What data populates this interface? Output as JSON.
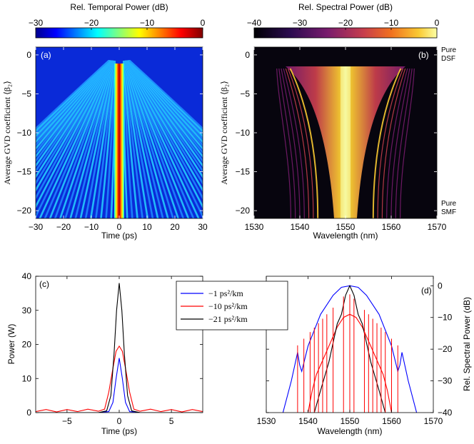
{
  "colorbar_a": {
    "title": "Rel. Temporal Power (dB)",
    "ticks": [
      "−30",
      "−20",
      "−10",
      "0"
    ]
  },
  "colorbar_b": {
    "title": "Rel. Spectral Power (dB)",
    "ticks": [
      "−40",
      "−30",
      "−20",
      "−10",
      "0"
    ]
  },
  "chart_data": [
    {
      "panel": "(a)",
      "type": "heatmap",
      "colormap": "jet",
      "xlabel": "Time (ps)",
      "ylabel": "Average GVD coefficient ⟨β₂⟩",
      "xlim": [
        -30,
        30
      ],
      "ylim": [
        -21,
        1
      ],
      "xticks": [
        -30,
        -20,
        -10,
        0,
        10,
        20,
        30
      ],
      "yticks": [
        0,
        -5,
        -10,
        -15,
        -20
      ],
      "zlim": [
        -30,
        0
      ],
      "zunit": "dB"
    },
    {
      "panel": "(b)",
      "type": "heatmap",
      "colormap": "inferno",
      "xlabel": "Wavelength (nm)",
      "ylabel": "Average GVD coefficient ⟨β₂⟩",
      "xlim": [
        1530,
        1570
      ],
      "ylim": [
        -21,
        1
      ],
      "xticks": [
        1530,
        1540,
        1550,
        1560,
        1570
      ],
      "yticks": [
        0,
        -5,
        -10,
        -15,
        -20
      ],
      "zlim": [
        -40,
        0
      ],
      "zunit": "dB",
      "annotations": [
        {
          "text": "Pure DSF",
          "lines": [
            "Pure",
            "DSF"
          ],
          "at_y": 0
        },
        {
          "text": "Pure SMF",
          "lines": [
            "Pure",
            "SMF"
          ],
          "at_y": -21
        }
      ]
    },
    {
      "panel": "(c)",
      "type": "line",
      "xlabel": "Time (ps)",
      "ylabel": "Power (W)",
      "xlim": [
        -8,
        8
      ],
      "ylim": [
        0,
        40
      ],
      "xticks": [
        -5,
        0,
        5
      ],
      "yticks": [
        0,
        10,
        20,
        30,
        40
      ],
      "series": [
        {
          "name": "−1 ps²/km",
          "color": "#0000ff",
          "x": [
            -8,
            -2,
            -1,
            -0.6,
            -0.3,
            0,
            0.3,
            0.6,
            1,
            2,
            8
          ],
          "y": [
            0,
            0,
            0.3,
            3,
            10,
            16,
            10,
            3,
            0.3,
            0,
            0
          ]
        },
        {
          "name": "−10 ps²/km",
          "color": "#ff0000",
          "x": [
            -8,
            -7,
            -6,
            -5,
            -4,
            -3,
            -2,
            -1.4,
            -1,
            -0.6,
            -0.3,
            0,
            0.3,
            0.6,
            1,
            1.4,
            2,
            3,
            4,
            5,
            6,
            7,
            8
          ],
          "y": [
            0.3,
            0.9,
            0.2,
            0.9,
            0.3,
            1,
            0.4,
            1,
            6,
            13,
            18,
            19.5,
            18,
            13,
            6,
            1,
            0.4,
            1,
            0.3,
            0.9,
            0.2,
            0.9,
            0.3
          ]
        },
        {
          "name": "−21 ps²/km",
          "color": "#000000",
          "x": [
            -8,
            -2,
            -1.2,
            -0.8,
            -0.5,
            -0.25,
            0,
            0.25,
            0.5,
            0.8,
            1.2,
            2,
            8
          ],
          "y": [
            0,
            0,
            0.5,
            5,
            17,
            30,
            38,
            30,
            17,
            5,
            0.5,
            0,
            0
          ]
        }
      ],
      "legend": "top-right"
    },
    {
      "panel": "(d)",
      "type": "line",
      "xlabel": "Wavelength (nm)",
      "ylabel": "Rel. Spectral Power (dB)",
      "xlim": [
        1530,
        1570
      ],
      "ylim": [
        -40,
        3
      ],
      "xticks": [
        1530,
        1540,
        1550,
        1560,
        1570
      ],
      "yticks": [
        0,
        -10,
        -20,
        -30,
        -40
      ],
      "series": [
        {
          "name": "−1 ps²/km",
          "color": "#0000ff",
          "x": [
            1534,
            1536,
            1537.5,
            1538,
            1538.5,
            1540,
            1543,
            1546,
            1548,
            1550,
            1552,
            1554,
            1557,
            1560,
            1561.5,
            1562,
            1562.5,
            1564,
            1566
          ],
          "y": [
            -40,
            -30,
            -21,
            -25,
            -27,
            -19,
            -9,
            -3,
            -0.5,
            0,
            -0.5,
            -3,
            -9,
            -19,
            -27,
            -25,
            -21,
            -30,
            -40
          ]
        },
        {
          "name": "−10 ps²/km",
          "color": "#ff0000",
          "x": [
            1540,
            1541,
            1542,
            1543,
            1545,
            1547,
            1548.5,
            1550,
            1551.5,
            1553,
            1555,
            1557,
            1558,
            1559,
            1560
          ],
          "y": [
            -40,
            -33,
            -28,
            -25,
            -19,
            -13,
            -10,
            -9,
            -10,
            -13,
            -19,
            -25,
            -28,
            -33,
            -40
          ]
        },
        {
          "name": "−21 ps²/km",
          "color": "#000000",
          "x": [
            1541.5,
            1543,
            1545,
            1546,
            1547,
            1548,
            1549,
            1550,
            1551,
            1552,
            1553,
            1554,
            1555,
            1557,
            1558.5
          ],
          "y": [
            -40,
            -33,
            -24,
            -18,
            -12,
            -9,
            -3,
            0,
            -3,
            -9,
            -12,
            -18,
            -24,
            -33,
            -40
          ]
        }
      ]
    }
  ]
}
